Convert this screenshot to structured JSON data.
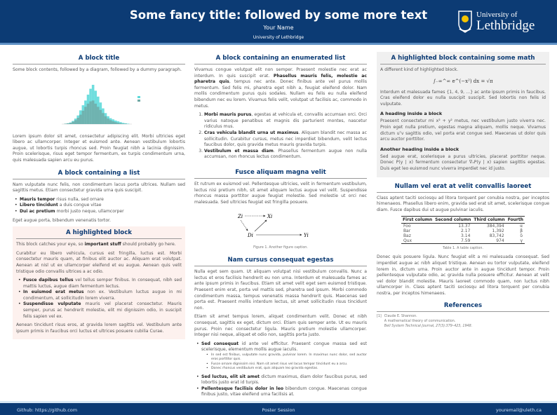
{
  "header": {
    "title": "Some fancy title: followed by some more text",
    "author": "Your Name",
    "institution": "University of Lethbridge",
    "logo_line1": "University of",
    "logo_line2": "Lethbridge"
  },
  "col1": {
    "b1_title": "A block title",
    "b1_intro": "Some block contents, followed by a diagram, followed by a dummy paragraph.",
    "b1_para": "Lorem ipsum dolor sit amet, consectetur adipiscing elit. Morbi ultricies eget libero ac ullamcorper. Integer et euismod ante. Aenean vestibulum lobortis augue, ut lobortis turpis rhoncus sed. Proin feugiat nibh a lacinia dignissim. Proin scelerisque, risus eget tempor fermentum, ex turpis condimentum urna, quis malesuada sapien arcu eu purus.",
    "b2_title": "A block containing a list",
    "b2_intro": "Nam vulputate nunc felis, non condimentum lacus porta ultrices. Nullam sed sagittis metus. Etiam consectetur gravida urna quis suscipit.",
    "b2_items": [
      {
        "b": "Mauris tempor",
        "t": " risus nulla, sed ornare"
      },
      {
        "b": "Libero tincidunt",
        "t": " a duis congue vitae"
      },
      {
        "b": "Dui ac pretium",
        "t": " morbi justo neque, ullamcorper"
      }
    ],
    "b2_outro": "Eget augue porta, bibendum venenatis tortor.",
    "b3_title": "A highlighted block",
    "b3_p1a": "This block catches your eye, so ",
    "b3_p1b": "important stuff",
    "b3_p1c": " should probably go here.",
    "b3_p2": "Curabitur eu libero vehicula, cursus est fringilla, luctus est. Morbi consectetur mauris quam, at finibus elit auctor ac. Aliquam erat volutpat. Aenean at nisl ut ex ullamcorper eleifend et eu augue. Aenean quis velit tristique odio convallis ultrices a ac odio.",
    "b3_items": [
      {
        "b": "Fusce dapibus tellus",
        "t": " vel tellus semper finibus. In consequat, nibh sed mattis luctus, augue diam fermentum lectus."
      },
      {
        "b": "In euismod erat metus",
        "t": " non ex. Vestibulum luctus augue in mi condimentum, at sollicitudin lorem viverra."
      },
      {
        "b": "Suspendisse vulputate",
        "t": " mauris vel placerat consectetur. Mauris semper, purus ac hendrerit molestie, elit mi dignissim odio, in suscipit felis sapien vel ex."
      }
    ],
    "b3_p3": "Aenean tincidunt risus eros, at gravida lorem sagittis vel. Vestibulum ante ipsum primis in faucibus orci luctus et ultrices posuere cubilia Curae."
  },
  "chart_data": {
    "type": "bar",
    "series": [
      {
        "values": [
          0,
          1,
          2,
          4,
          8,
          14,
          22,
          35,
          48,
          60,
          75,
          90,
          100,
          85,
          70,
          55,
          40,
          28,
          20,
          15,
          12,
          9,
          7,
          5,
          3,
          2,
          1,
          0
        ]
      },
      {
        "values": [
          0,
          1,
          2,
          3,
          6,
          10,
          16,
          24,
          34,
          44,
          52,
          58,
          60,
          52,
          44,
          36,
          28,
          20,
          14,
          10,
          7,
          5,
          3,
          2,
          1,
          1,
          0,
          0
        ]
      }
    ],
    "colors": [
      "#5fdada",
      "#6fa8a4"
    ],
    "legend": "right"
  },
  "col2": {
    "b1_title": "A block containing an enumerated list",
    "b1_p_a": "Vivamus congue volutpat elit non semper. Praesent molestie nec erat ac interdum. In quis suscipit erat. ",
    "b1_p_b": "Phasellus mauris felis, molestie ac pharetra quis",
    "b1_p_c": ", tempus nec ante. Donec finibus ante vel purus mollis fermentum. Sed felis mi, pharetra eget nibh a, feugiat eleifend dolor. Nam mollis condimentum purus quis sodales. Nullam eu felis eu nulla eleifend bibendum nec eu lorem. Vivamus felis velit, volutpat ut facilisis ac, commodo in metus.",
    "b1_items": [
      {
        "b": "Morbi mauris purus",
        "t": ", egestas at vehicula et, convallis accumsan orci. Orci varius natoque penatibus et magnis dis parturient montes, nascetur ridiculus mus."
      },
      {
        "b": "Cras vehicula blandit urna ut maximus",
        "t": ". Aliquam blandit nec massa ac sollicitudin. Curabitur cursus, metus nec imperdiet bibendum, velit lectus faucibus dolor, quis gravida metus mauris gravida turpis."
      },
      {
        "b": "Vestibulum et massa diam",
        "t": ". Phasellus fermentum augue non nulla accumsan, non rhoncus lectus condimentum."
      }
    ],
    "b2_title": "Fusce aliquam magna velit",
    "b2_p": "Et rutrum ex euismod vel. Pellentesque ultricies, velit in fermentum vestibulum, lectus nisi pretium nibh, sit amet aliquam lectus augue vel velit. Suspendisse rhoncus massa porttitor augue feugiat molestie. Sed molestie ut orci nec malesuada. Sed ultricies feugiat est fringilla posuere.",
    "diagram": {
      "z": "Zi",
      "x": "Xi",
      "d": "Di",
      "y": "Yi"
    },
    "fig_caption": "Figure 1. Another figure caption.",
    "b3_title": "Nam cursus consequat egestas",
    "b3_p1": "Nulla eget sem quam. Ut aliquam volutpat nisi vestibulum convallis. Nunc a lectus et eros facilisis hendrerit eu non urna. Interdum et malesuada fames ac ante ipsum primis in faucibus. Etiam sit amet velit eget sem euismod tristique. Praesent enim erat, porta vel mattis sed, pharetra sed ipsum. Morbi commodo condimentum massa, tempus venenatis massa hendrerit quis. Maecenas sed porta est. Praesent mollis interdum lectus, sit amet sollicitudin risus tincidunt non.",
    "b3_p2": "Etiam sit amet tempus lorem, aliquet condimentum velit. Donec et nibh consequat, sagittis ex eget, dictum orci. Etiam quis semper ante. Ut eu mauris purus. Proin nec consectetur ligula. Mauris pretium molestie ullamcorper. Integer nisi neque, aliquet et odio non, sagittis porta justo.",
    "b3_item1": {
      "b": "Sed consequat",
      "t": " id ante vel efficitur. Praesent congue massa sed est scelerisque, elementum mollis augue iaculis."
    },
    "b3_sub": [
      "In sed est finibus, vulputate nunc gravida, pulvinar lorem. In maximus nunc dolor, sed auctor eros porttitor quis.",
      "Fusce ornare dignissim nisi. Nam sit amet risus vel lacus tempor tincidunt eu a arcu.",
      "Donec rhoncus vestibulum erat, quis aliquam leo gravida egestas."
    ],
    "b3_item2": {
      "b": "Sed luctus, elit sit amet",
      "t": " dictum maximus, diam dolor faucibus purus, sed lobortis justo erat id turpis."
    },
    "b3_item3": {
      "b": "Pellentesque facilisis dolor in leo",
      "t": " bibendum congue. Maecenas congue finibus justo, vitae eleifend urna facilisis at."
    }
  },
  "col3": {
    "b1_title": "A highlighted block containing some math",
    "b1_intro": "A different kind of highlighted block.",
    "equation": "∫₋∞^∞ e^(−x²) dx = √π",
    "b1_p": "Interdum et malesuada fames {1, 4, 9, …} ac ante ipsum primis in faucibus. Cras eleifend dolor eu nulla suscipit suscipit. Sed lobortis non felis id vulputate.",
    "h1": "A heading inside a block",
    "h1_p": "Praesent consectetur mi x² + y² metus, nec vestibulum justo viverra nec. Proin eget nulla pretium, egestas magna aliquam, mollis neque. Vivamus dictum uᵀv sagittis odio, vel porta erat congue sed. Maecenas ut dolor quis arcu auctor porttitor.",
    "h2": "Another heading inside a block",
    "h2_p": "Sed augue erat, scelerisque a purus ultricies, placerat porttitor neque. Donec P(y | x) fermentum consectetur ∇ₓP(y | x) sapien sagittis egestas. Duis eget leo euismod nunc viverra imperdiet nec id justo.",
    "b2_title": "Nullam vel erat at velit convallis laoreet",
    "b2_p1": "Class aptent taciti sociosqu ad litora torquent per conubia nostra, per inceptos himenaeos. Phasellus libero enim, gravida sed erat sit amet, scelerisque congue diam. Fusce dapibus dui ut augue pulvinar iaculis.",
    "table": {
      "headers": [
        "First column",
        "Second column",
        "Third column",
        "Fourth"
      ],
      "rows": [
        [
          "Foo",
          "13.37",
          "384,394",
          "α"
        ],
        [
          "Bar",
          "2.17",
          "1,392",
          "β"
        ],
        [
          "Baz",
          "3.14",
          "83,742",
          "δ"
        ],
        [
          "Qux",
          "7.59",
          "974",
          "γ"
        ]
      ]
    },
    "table_caption": "Table 1. A table caption.",
    "b2_p2": "Donec quis posuere ligula. Nunc feugiat elit a mi malesuada consequat. Sed imperdiet augue ac nibh aliquet tristique. Aenean eu tortor vulputate, eleifend lorem in, dictum urna. Proin auctor ante in augue tincidunt tempor. Proin pellentesque vulputate odio, ac gravida nulla posuere efficitur. Aenean at velit vel dolor blandit molestie. Mauris laoreet commodo quam, non luctus nibh ullamcorper in. Class aptent taciti sociosqu ad litora torquent per conubia nostra, per inceptos himenaeos.",
    "b3_title": "References",
    "ref_num": "[1]",
    "ref_author": "Claude E. Shannon.",
    "ref_title": "A mathematical theory of communication.",
    "ref_journal": "Bell System Technical Journal, 27(3):379–423, 1948."
  },
  "footer": {
    "left": "Github: https://github.com",
    "center": "Poster Session",
    "right": "youremail@uleth.ca"
  }
}
